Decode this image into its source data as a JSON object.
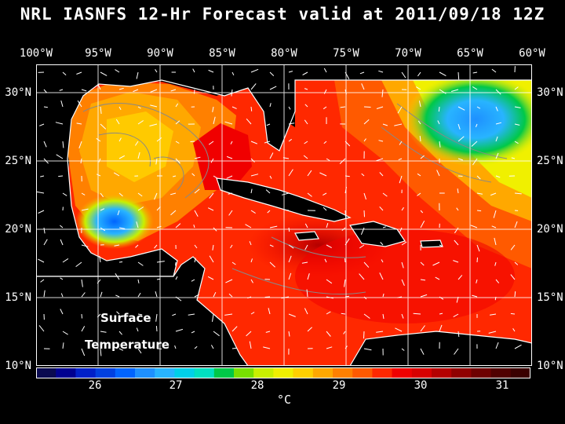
{
  "title": "NRL IASNFS  12-Hr Forecast valid at 2011/09/18 12Z",
  "lon_labels": [
    "100°W",
    "95°W",
    "90°W",
    "85°W",
    "80°W",
    "75°W",
    "70°W",
    "65°W",
    "60°W"
  ],
  "lat_labels": [
    "30°N",
    "25°N",
    "20°N",
    "15°N",
    "10°N"
  ],
  "map_overlay": {
    "line1": "Surface",
    "line2": "Temperature"
  },
  "colorbar": {
    "ticks": [
      "26",
      "27",
      "28",
      "29",
      "30",
      "31"
    ],
    "unit": "°C",
    "colors": [
      "#0a0a50",
      "#000090",
      "#0020c8",
      "#0040e0",
      "#0064ff",
      "#1e90ff",
      "#28b4ff",
      "#00d0e8",
      "#00e0c0",
      "#00c848",
      "#78e000",
      "#c8f000",
      "#f0f000",
      "#ffd000",
      "#ffa800",
      "#ff8000",
      "#ff5a00",
      "#ff2800",
      "#f00000",
      "#d80000",
      "#b40000",
      "#900000",
      "#6e0000",
      "#500000",
      "#3a0000"
    ]
  },
  "map": {
    "lon_range": [
      -100,
      -60
    ],
    "lat_range": [
      10,
      31
    ],
    "land_color": "#000000",
    "graticule_color": "#ffffff",
    "vector_color": "#ffffff"
  }
}
